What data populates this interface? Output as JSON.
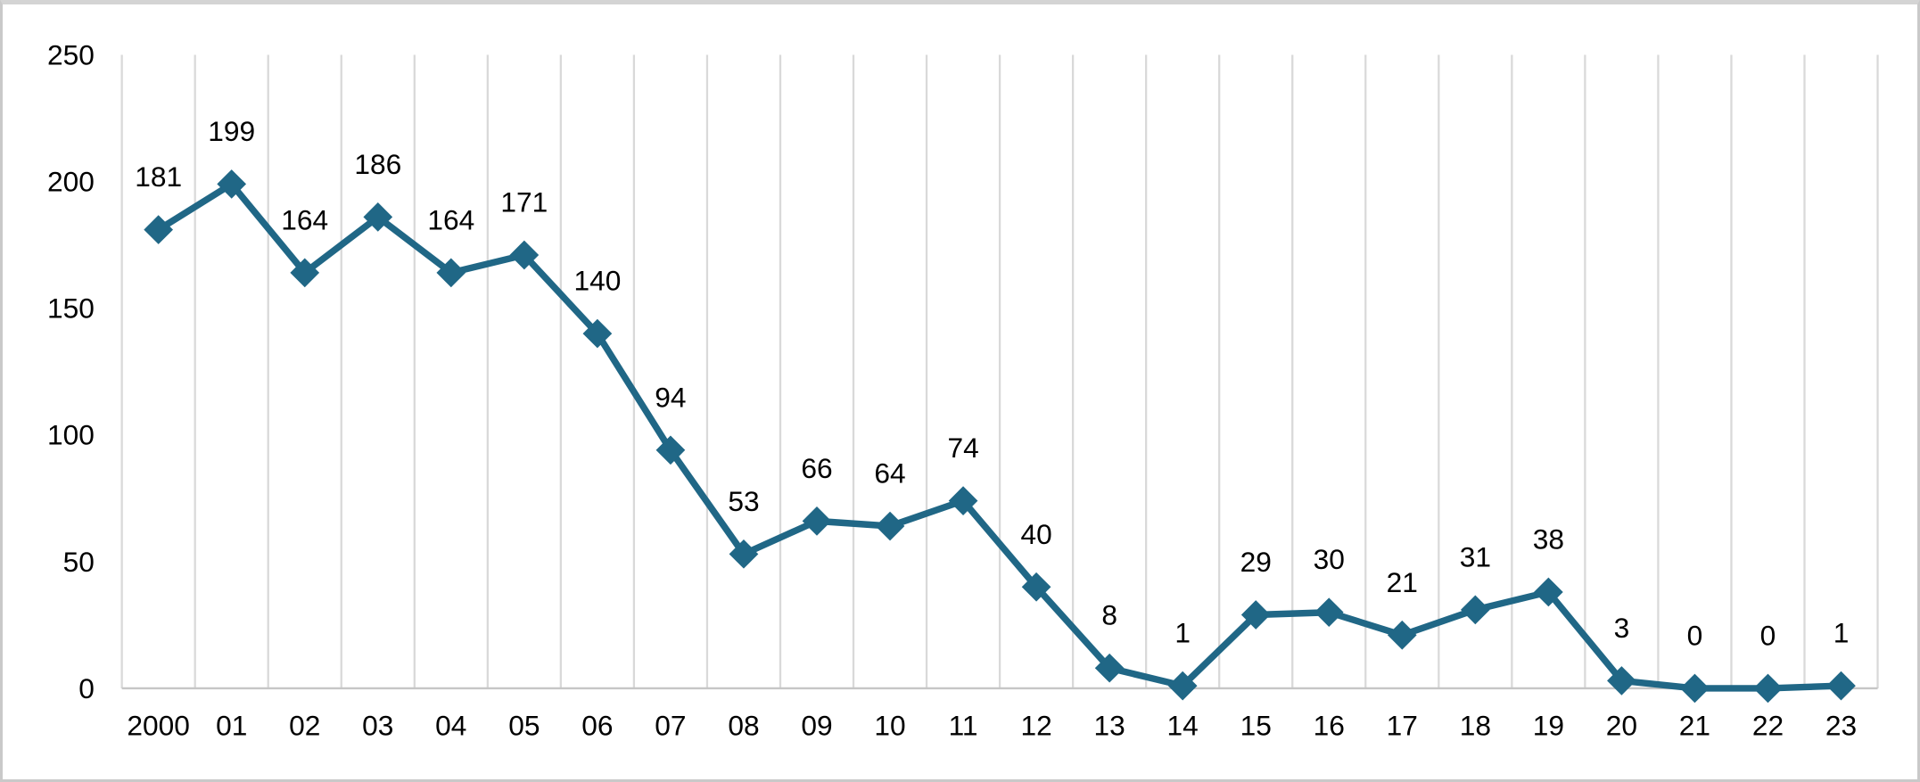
{
  "chart_data": {
    "type": "line",
    "title": "",
    "xlabel": "",
    "ylabel": "",
    "categories": [
      "2000",
      "01",
      "02",
      "03",
      "04",
      "05",
      "06",
      "07",
      "08",
      "09",
      "10",
      "11",
      "12",
      "13",
      "14",
      "15",
      "16",
      "17",
      "18",
      "19",
      "20",
      "21",
      "22",
      "23"
    ],
    "series": [
      {
        "name": "series-1",
        "values": [
          181,
          199,
          164,
          186,
          164,
          171,
          140,
          94,
          53,
          66,
          64,
          74,
          40,
          8,
          1,
          29,
          30,
          21,
          31,
          38,
          3,
          0,
          0,
          1
        ]
      }
    ],
    "data_labels": true,
    "marker": "diamond",
    "legend": "none",
    "ylim": [
      0,
      250
    ],
    "yticks": [
      0,
      50,
      100,
      150,
      200,
      250
    ],
    "grid": "vertical-only",
    "colors": {
      "series": "#206786",
      "gridline": "#d9d9d9",
      "axis_line": "#c6c6c6",
      "tick_label": "#000000",
      "data_label": "#000000",
      "background": "#ffffff",
      "frame_border": "#c9c9c9"
    }
  }
}
